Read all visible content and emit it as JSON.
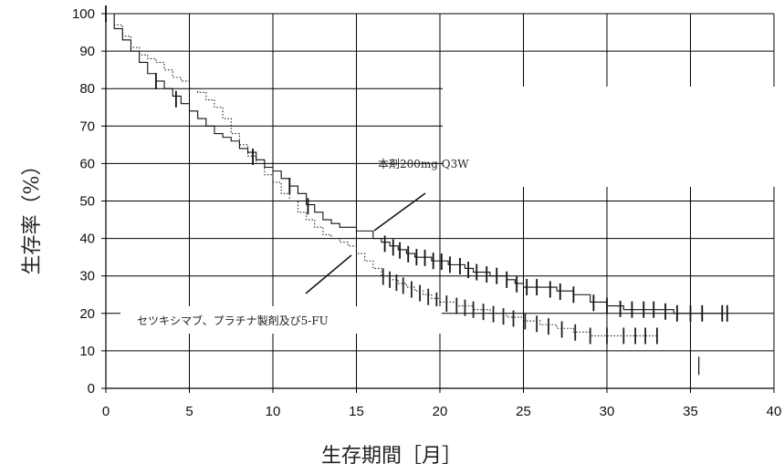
{
  "chart_data": {
    "type": "line",
    "title": "",
    "xlabel": "生存期間［月］",
    "ylabel": "生存率（%）",
    "xlim": [
      0,
      40
    ],
    "ylim": [
      0,
      100
    ],
    "x_ticks": [
      "0",
      "5",
      "10",
      "15",
      "20",
      "25",
      "30",
      "35",
      "40"
    ],
    "y_ticks": [
      "0",
      "10",
      "20",
      "30",
      "40",
      "50",
      "60",
      "70",
      "80",
      "90",
      "100"
    ],
    "grid": true,
    "annotations": [
      {
        "text": "本剤200mg Q3W",
        "series": "本剤200mg Q3W"
      },
      {
        "text": "セツキシマブ、プラチナ製剤及び5-FU",
        "series": "セツキシマブ、プラチナ製剤及び5-FU"
      }
    ],
    "series": [
      {
        "name": "本剤200mg Q3W",
        "style": "solid",
        "x": [
          0,
          0.5,
          1,
          1.5,
          2,
          2.5,
          3,
          3.5,
          4,
          4.5,
          5,
          5.5,
          6,
          6.5,
          7,
          7.5,
          8,
          8.5,
          9,
          9.5,
          10,
          10.5,
          11,
          11.5,
          12,
          12.5,
          13,
          13.5,
          14,
          14.5,
          15,
          15.5,
          16,
          16.5,
          17,
          17.5,
          18,
          18.5,
          19,
          19.5,
          20,
          20.5,
          21,
          21.5,
          22,
          22.5,
          23,
          23.5,
          24,
          24.5,
          25,
          26,
          27,
          28,
          29,
          30,
          31,
          32,
          33,
          34,
          35,
          36,
          37
        ],
        "y": [
          100,
          96,
          93,
          90,
          87,
          84,
          82,
          80,
          78,
          76,
          74,
          72,
          70,
          68,
          67,
          66,
          64,
          63,
          61,
          59,
          58,
          56,
          54,
          52,
          49,
          47,
          45,
          44,
          43,
          43,
          42,
          42,
          40,
          39,
          38,
          37,
          36,
          35,
          35,
          34,
          34,
          33,
          33,
          32,
          31,
          31,
          30,
          30,
          29,
          28,
          27,
          27,
          26,
          25,
          23,
          22,
          21,
          21,
          21,
          20,
          20,
          20,
          20
        ],
        "censor_x": [
          0,
          3,
          4.2,
          8.8,
          11,
          12.1,
          16.7,
          17.2,
          17.6,
          18.1,
          18.6,
          19.1,
          19.6,
          20.1,
          20.6,
          21.2,
          21.7,
          22.2,
          22.8,
          23.4,
          24,
          24.6,
          25.2,
          25.8,
          26.6,
          27.2,
          28,
          29.2,
          30,
          30.8,
          31.5,
          32.2,
          32.8,
          33.5,
          34.2,
          35,
          35.7,
          36.9,
          37.2
        ],
        "color": "#111111"
      },
      {
        "name": "セツキシマブ、プラチナ製剤及び5-FU",
        "style": "dotted",
        "x": [
          0,
          0.5,
          1,
          1.5,
          2,
          2.5,
          3,
          3.5,
          4,
          4.5,
          5,
          5.5,
          6,
          6.5,
          7,
          7.5,
          8,
          8.5,
          9,
          9.5,
          10,
          10.5,
          11,
          11.5,
          12,
          12.5,
          13,
          13.5,
          14,
          14.5,
          15,
          15.5,
          16,
          16.5,
          17,
          17.5,
          18,
          18.5,
          19,
          19.5,
          20,
          21,
          22,
          23,
          24,
          25,
          26,
          27,
          28,
          29,
          30,
          31,
          32,
          33
        ],
        "y": [
          100,
          97,
          94,
          91,
          89,
          88,
          87,
          85,
          83,
          82,
          80,
          79,
          77,
          75,
          72,
          68,
          65,
          62,
          60,
          57,
          55,
          52,
          50,
          47,
          45,
          43,
          41,
          40,
          39,
          38,
          36,
          34,
          32,
          30,
          29,
          28,
          27,
          26,
          25,
          24,
          23,
          22,
          21,
          20,
          19,
          18,
          17,
          16,
          15,
          14,
          14,
          14,
          14,
          14
        ],
        "censor_x": [
          16.6,
          17,
          17.4,
          17.8,
          18.3,
          18.8,
          19.3,
          19.8,
          20.4,
          21,
          21.5,
          22,
          22.6,
          23.2,
          23.8,
          24.4,
          25.1,
          25.8,
          26.5,
          27.3,
          28.1,
          29,
          30,
          31,
          31.7,
          32.3,
          33
        ],
        "color": "#222222"
      }
    ],
    "outlier_marks": [
      {
        "x": 35.5,
        "y": 6
      }
    ]
  }
}
